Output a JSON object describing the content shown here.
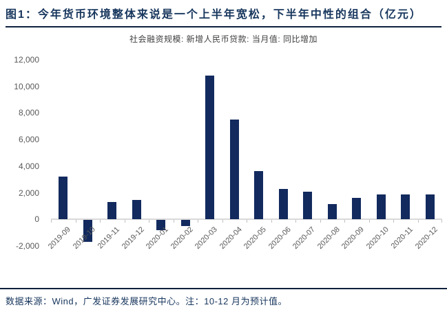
{
  "header": {
    "title": "图1：今年货币环境整体来说是一个上半年宽松，下半年中性的组合（亿元）"
  },
  "footer": {
    "note": "数据来源：Wind，广发证券发展研究中心。注：10-12 月为预计值。"
  },
  "colors": {
    "bar": "#122a5e",
    "title_navy": "#17365d",
    "axis_gray": "#d9d9d9",
    "label_gray": "#595959"
  },
  "chart_data": {
    "type": "bar",
    "title": "社会融资规模: 新增人民币贷款: 当月值: 同比增加",
    "categories": [
      "2019-09",
      "2019-10",
      "2019-11",
      "2019-12",
      "2020-01",
      "2020-02",
      "2020-03",
      "2020-04",
      "2020-05",
      "2020-06",
      "2020-07",
      "2020-08",
      "2020-09",
      "2020-10",
      "2020-11",
      "2020-12"
    ],
    "values": [
      3200,
      -1650,
      1300,
      1450,
      -750,
      -450,
      10800,
      7500,
      3650,
      2300,
      2100,
      1150,
      1600,
      1900,
      1900,
      1900
    ],
    "xlabel": "",
    "ylabel": "",
    "ylim": [
      -2000,
      12000
    ],
    "y_tick_labels": [
      "12,000",
      "10,000",
      "8,000",
      "6,000",
      "4,000",
      "2,000",
      "0",
      "-2,000"
    ],
    "grid": false,
    "legend_position": "top-center",
    "bar_color": "#122a5e"
  }
}
